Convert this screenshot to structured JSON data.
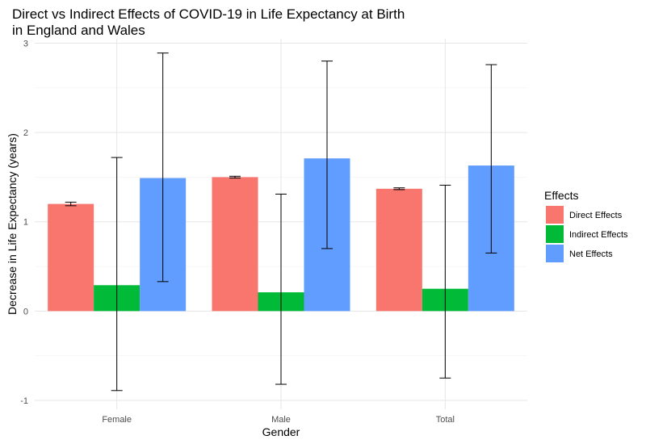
{
  "chart_data": {
    "type": "bar",
    "title": "Direct vs Indirect Effects of COVID-19 in Life Expectancy at Birth\nin England and Wales",
    "xlabel": "Gender",
    "ylabel": "Decrease in Life Expectancy (years)",
    "categories": [
      "Female",
      "Male",
      "Total"
    ],
    "ylim": [
      -1.1,
      3.05
    ],
    "yticks": [
      -1,
      0,
      1,
      2,
      3
    ],
    "grid": true,
    "legend_title": "Effects",
    "legend_position": "right",
    "series": [
      {
        "name": "Direct Effects",
        "color": "#F8766D",
        "values": [
          1.2,
          1.5,
          1.37
        ],
        "error_low": [
          1.18,
          1.49,
          1.36
        ],
        "error_high": [
          1.22,
          1.51,
          1.38
        ]
      },
      {
        "name": "Indirect Effects",
        "color": "#00BA38",
        "values": [
          0.29,
          0.21,
          0.25
        ],
        "error_low": [
          -0.89,
          -0.82,
          -0.75
        ],
        "error_high": [
          1.72,
          1.31,
          1.41
        ]
      },
      {
        "name": "Net Effects",
        "color": "#619CFF",
        "values": [
          1.49,
          1.71,
          1.63
        ],
        "error_low": [
          0.33,
          0.7,
          0.65
        ],
        "error_high": [
          2.89,
          2.8,
          2.76
        ]
      }
    ]
  }
}
